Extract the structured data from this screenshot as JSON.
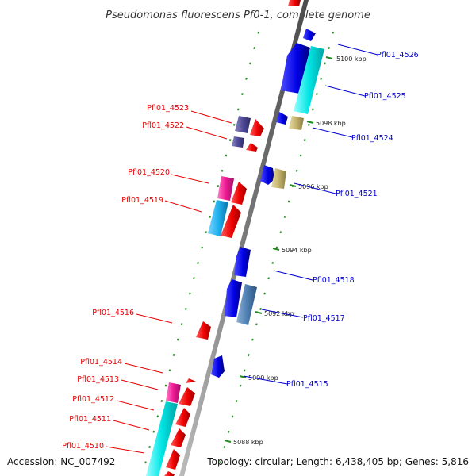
{
  "title": "Pseudomonas fluorescens Pf0-1, complete genome",
  "accession": "Accession: NC_007492",
  "topology": "Topology: circular; Length: 6,438,405 bp; Genes: 5,816",
  "colors": {
    "forward_label": "#e60000",
    "reverse_label": "#0000cc",
    "backbone": "#8a8a8a",
    "tick": "#1f8a1f"
  },
  "scale_labels": [
    "5100 kbp",
    "5098 kbp",
    "5096 kbp",
    "5094 kbp",
    "5092 kbp",
    "5090 kbp",
    "5088 kbp"
  ],
  "genes_left": [
    "Pfl01_4523",
    "Pfl01_4522",
    "Pfl01_4520",
    "Pfl01_4519",
    "Pfl01_4516",
    "Pfl01_4514",
    "Pfl01_4513",
    "Pfl01_4512",
    "Pfl01_4511",
    "Pfl01_4510"
  ],
  "genes_right": [
    "Pfl01_4526",
    "Pfl01_4525",
    "Pfl01_4524",
    "Pfl01_4521",
    "Pfl01_4518",
    "Pfl01_4517",
    "Pfl01_4515"
  ]
}
